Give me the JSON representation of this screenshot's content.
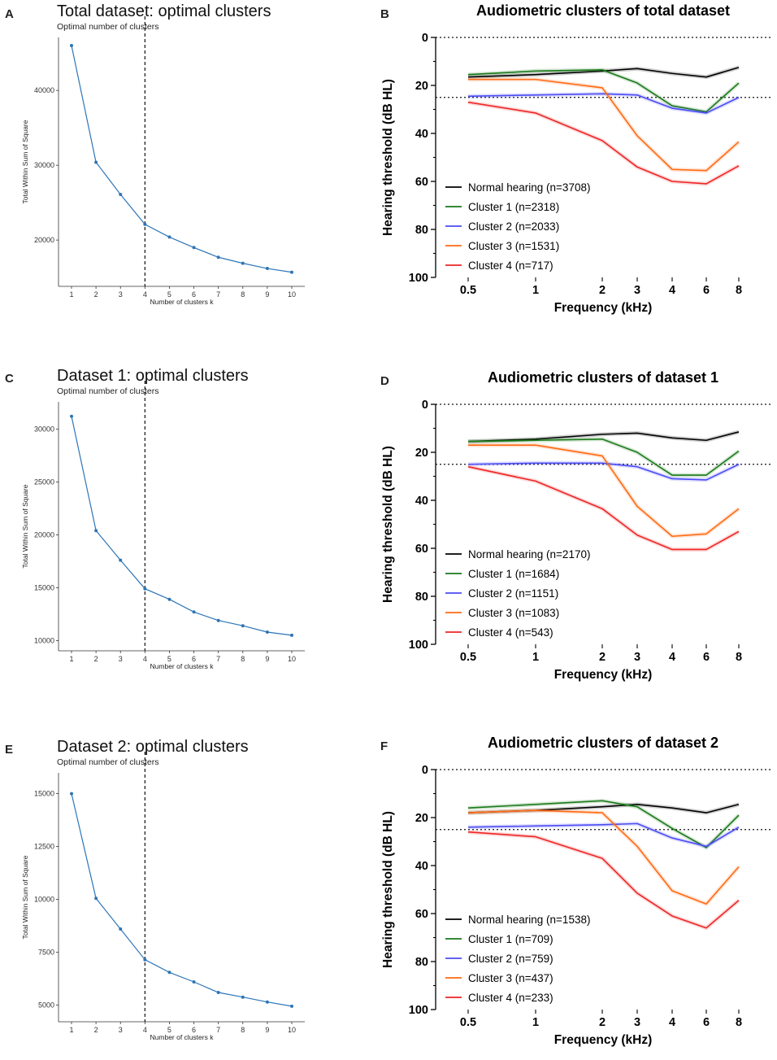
{
  "chart_data": [
    {
      "panel": "A",
      "type": "line",
      "title": "Total dataset: optimal clusters",
      "subtitle": "Optimal number of clusters",
      "xlabel": "Number of clusters k",
      "ylabel": "Total Within Sum of Square",
      "x": [
        1,
        2,
        3,
        4,
        5,
        6,
        7,
        8,
        9,
        10
      ],
      "x_ticks": [
        "1",
        "2",
        "3",
        "4",
        "5",
        "6",
        "7",
        "8",
        "9",
        "10"
      ],
      "values": [
        46000,
        30400,
        26100,
        22100,
        20400,
        19000,
        17700,
        16900,
        16200,
        15700
      ],
      "y_ticks": [
        20000,
        30000,
        40000
      ],
      "y_tick_labels": [
        "20000",
        "30000",
        "40000"
      ],
      "ylim": [
        14900,
        46000
      ],
      "vline": 4,
      "color": "#2e75b6"
    },
    {
      "panel": "B",
      "type": "line",
      "title": "Audiometric clusters of total dataset",
      "xlabel": "Frequency (kHz)",
      "ylabel": "Hearing threshold (dB HL)",
      "x": [
        0.5,
        1,
        2,
        3,
        4,
        6,
        8
      ],
      "x_ticks": [
        "0.5",
        "1",
        "2",
        "3",
        "4",
        "6",
        "8"
      ],
      "y_ticks": [
        0,
        20,
        40,
        60,
        80,
        100
      ],
      "y_tick_labels": [
        "0",
        "20",
        "40",
        "60",
        "80",
        "100"
      ],
      "ylim": [
        0,
        100
      ],
      "y_inverted": true,
      "hlines": [
        0,
        25
      ],
      "series": [
        {
          "name": "Normal hearing (n=3708)",
          "color": "#000000",
          "values": [
            16.5,
            15.5,
            14,
            13,
            15,
            16.5,
            12.5
          ]
        },
        {
          "name": "Cluster 1 (n=2318)",
          "color": "#1a7a1a",
          "values": [
            15.5,
            14,
            13.5,
            19,
            28.5,
            31,
            19
          ]
        },
        {
          "name": "Cluster 2 (n=2033)",
          "color": "#4b4bf5",
          "values": [
            24.5,
            24,
            23.5,
            24,
            29.5,
            31.5,
            25
          ]
        },
        {
          "name": "Cluster 3 (n=1531)",
          "color": "#ff6a13",
          "values": [
            17.5,
            17.5,
            21,
            41,
            55,
            55.5,
            43.5
          ]
        },
        {
          "name": "Cluster 4 (n=717)",
          "color": "#ee2525",
          "values": [
            27,
            31.5,
            43,
            54,
            60,
            61,
            53.5
          ]
        }
      ]
    },
    {
      "panel": "C",
      "type": "line",
      "title": "Dataset 1: optimal clusters",
      "subtitle": "Optimal number of clusters",
      "xlabel": "Number of clusters k",
      "ylabel": "Total Within Sum of Square",
      "x": [
        1,
        2,
        3,
        4,
        5,
        6,
        7,
        8,
        9,
        10
      ],
      "x_ticks": [
        "1",
        "2",
        "3",
        "4",
        "5",
        "6",
        "7",
        "8",
        "9",
        "10"
      ],
      "values": [
        31200,
        20400,
        17600,
        14900,
        13900,
        12700,
        11900,
        11400,
        10800,
        10500
      ],
      "y_ticks": [
        10000,
        15000,
        20000,
        25000,
        30000
      ],
      "y_tick_labels": [
        "10000",
        "15000",
        "20000",
        "25000",
        "30000"
      ],
      "ylim": [
        9800,
        31800
      ],
      "vline": 4,
      "color": "#2e75b6"
    },
    {
      "panel": "D",
      "type": "line",
      "title": "Audiometric clusters of dataset 1",
      "xlabel": "Frequency (kHz)",
      "ylabel": "Hearing threshold (dB HL)",
      "x": [
        0.5,
        1,
        2,
        3,
        4,
        6,
        8
      ],
      "x_ticks": [
        "0.5",
        "1",
        "2",
        "3",
        "4",
        "6",
        "8"
      ],
      "y_ticks": [
        0,
        20,
        40,
        60,
        80,
        100
      ],
      "y_tick_labels": [
        "0",
        "20",
        "40",
        "60",
        "80",
        "100"
      ],
      "ylim": [
        0,
        100
      ],
      "y_inverted": true,
      "hlines": [
        0,
        25
      ],
      "series": [
        {
          "name": "Normal hearing (n=2170)",
          "color": "#000000",
          "values": [
            15.5,
            14.5,
            12.5,
            12,
            14,
            15,
            11.5
          ]
        },
        {
          "name": "Cluster 1 (n=1684)",
          "color": "#1a7a1a",
          "values": [
            15.5,
            15,
            14.5,
            20,
            29.5,
            29.5,
            19.5
          ]
        },
        {
          "name": "Cluster 2 (n=1151)",
          "color": "#4b4bf5",
          "values": [
            25,
            24.5,
            24.5,
            26,
            31,
            31.5,
            25
          ]
        },
        {
          "name": "Cluster 3 (n=1083)",
          "color": "#ff6a13",
          "values": [
            17,
            17,
            21.5,
            42.5,
            55,
            54,
            43.5
          ]
        },
        {
          "name": "Cluster 4 (n=543)",
          "color": "#ee2525",
          "values": [
            26,
            32,
            43.5,
            54.5,
            60.5,
            60.5,
            53
          ]
        }
      ]
    },
    {
      "panel": "E",
      "type": "line",
      "title": "Dataset 2: optimal clusters",
      "subtitle": "Optimal number of clusters",
      "xlabel": "Number of clusters k",
      "ylabel": "Total Within Sum of Square",
      "x": [
        1,
        2,
        3,
        4,
        5,
        6,
        7,
        8,
        9,
        10
      ],
      "x_ticks": [
        "1",
        "2",
        "3",
        "4",
        "5",
        "6",
        "7",
        "8",
        "9",
        "10"
      ],
      "values": [
        15000,
        10050,
        8600,
        7150,
        6550,
        6100,
        5600,
        5380,
        5150,
        4950
      ],
      "y_ticks": [
        5000,
        7500,
        10000,
        12500,
        15000
      ],
      "y_tick_labels": [
        "5000",
        "7500",
        "10000",
        "12500",
        "15000"
      ],
      "ylim": [
        4600,
        15600
      ],
      "vline": 4,
      "color": "#2e75b6"
    },
    {
      "panel": "F",
      "type": "line",
      "title": "Audiometric clusters of dataset 2",
      "xlabel": "Frequency (kHz)",
      "ylabel": "Hearing threshold (dB HL)",
      "x": [
        0.5,
        1,
        2,
        3,
        4,
        6,
        8
      ],
      "x_ticks": [
        "0.5",
        "1",
        "2",
        "3",
        "4",
        "6",
        "8"
      ],
      "y_ticks": [
        0,
        20,
        40,
        60,
        80,
        100
      ],
      "y_tick_labels": [
        "0",
        "20",
        "40",
        "60",
        "80",
        "100"
      ],
      "ylim": [
        0,
        100
      ],
      "y_inverted": true,
      "hlines": [
        0,
        25
      ],
      "series": [
        {
          "name": "Normal hearing (n=1538)",
          "color": "#000000",
          "values": [
            18,
            17,
            15.5,
            14.5,
            16,
            18,
            14.5
          ]
        },
        {
          "name": "Cluster 1 (n=709)",
          "color": "#1a7a1a",
          "values": [
            16,
            14.5,
            13,
            15.5,
            24.5,
            32.5,
            19
          ]
        },
        {
          "name": "Cluster 2 (n=759)",
          "color": "#4b4bf5",
          "values": [
            24,
            23.5,
            23,
            22.5,
            28.5,
            32,
            24
          ]
        },
        {
          "name": "Cluster 3 (n=437)",
          "color": "#ff6a13",
          "values": [
            18,
            17,
            18,
            32,
            50.5,
            56,
            40.5
          ]
        },
        {
          "name": "Cluster 4 (n=233)",
          "color": "#ee2525",
          "values": [
            26,
            28,
            37,
            51.5,
            61,
            66,
            54.5
          ]
        }
      ]
    }
  ]
}
